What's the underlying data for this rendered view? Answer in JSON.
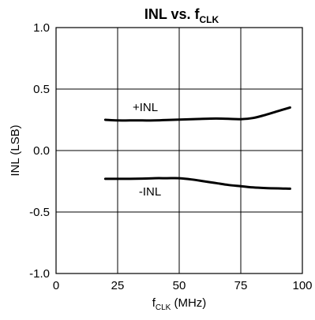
{
  "chart_data": {
    "type": "line",
    "title": "INL vs. f",
    "title_subscript": "CLK",
    "xlabel": "f",
    "xlabel_subscript": "CLK",
    "xlabel_unit": " (MHz)",
    "ylabel": "INL (LSB)",
    "xlim": [
      0,
      100
    ],
    "ylim": [
      -1.0,
      1.0
    ],
    "x_ticks": [
      "0",
      "25",
      "50",
      "75",
      "100"
    ],
    "y_ticks": [
      "1.0",
      "0.5",
      "0.0",
      "-0.5",
      "-1.0"
    ],
    "grid": true,
    "series": [
      {
        "name": "+INL",
        "x": [
          20,
          25,
          30,
          35,
          40,
          45,
          50,
          55,
          60,
          65,
          70,
          75,
          80,
          85,
          90,
          95
        ],
        "y": [
          0.25,
          0.245,
          0.245,
          0.245,
          0.245,
          0.248,
          0.252,
          0.255,
          0.258,
          0.26,
          0.258,
          0.255,
          0.265,
          0.29,
          0.32,
          0.35
        ]
      },
      {
        "name": "-INL",
        "x": [
          20,
          25,
          30,
          35,
          40,
          45,
          50,
          55,
          60,
          65,
          70,
          75,
          80,
          85,
          90,
          95
        ],
        "y": [
          -0.23,
          -0.23,
          -0.23,
          -0.228,
          -0.225,
          -0.225,
          -0.225,
          -0.235,
          -0.25,
          -0.265,
          -0.28,
          -0.29,
          -0.3,
          -0.305,
          -0.308,
          -0.31
        ]
      }
    ]
  }
}
